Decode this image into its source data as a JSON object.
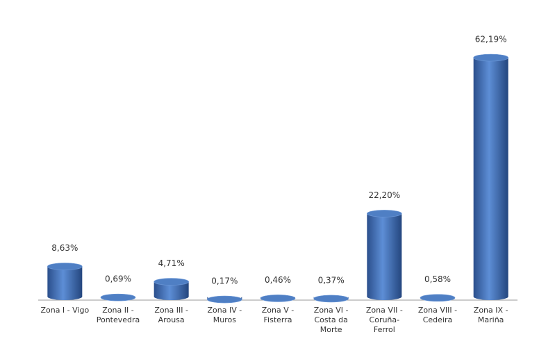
{
  "chart_data": {
    "type": "bar",
    "categories": [
      "Zona I - Vigo",
      "Zona II - Pontevedra",
      "Zona III - Arousa",
      "Zona IV - Muros",
      "Zona V - Fisterra",
      "Zona VI - Costa da Morte",
      "Zona VII - Coruña-Ferrol",
      "Zona VIII - Cedeira",
      "Zona IX - Mariña"
    ],
    "values": [
      8.63,
      0.69,
      4.71,
      0.17,
      0.46,
      0.37,
      22.2,
      0.58,
      62.19
    ],
    "value_labels": [
      "8,63%",
      "0,69%",
      "4,71%",
      "0,17%",
      "0,46%",
      "0,37%",
      "22,20%",
      "0,58%",
      "62,19%"
    ],
    "color": "#3e6db3"
  }
}
